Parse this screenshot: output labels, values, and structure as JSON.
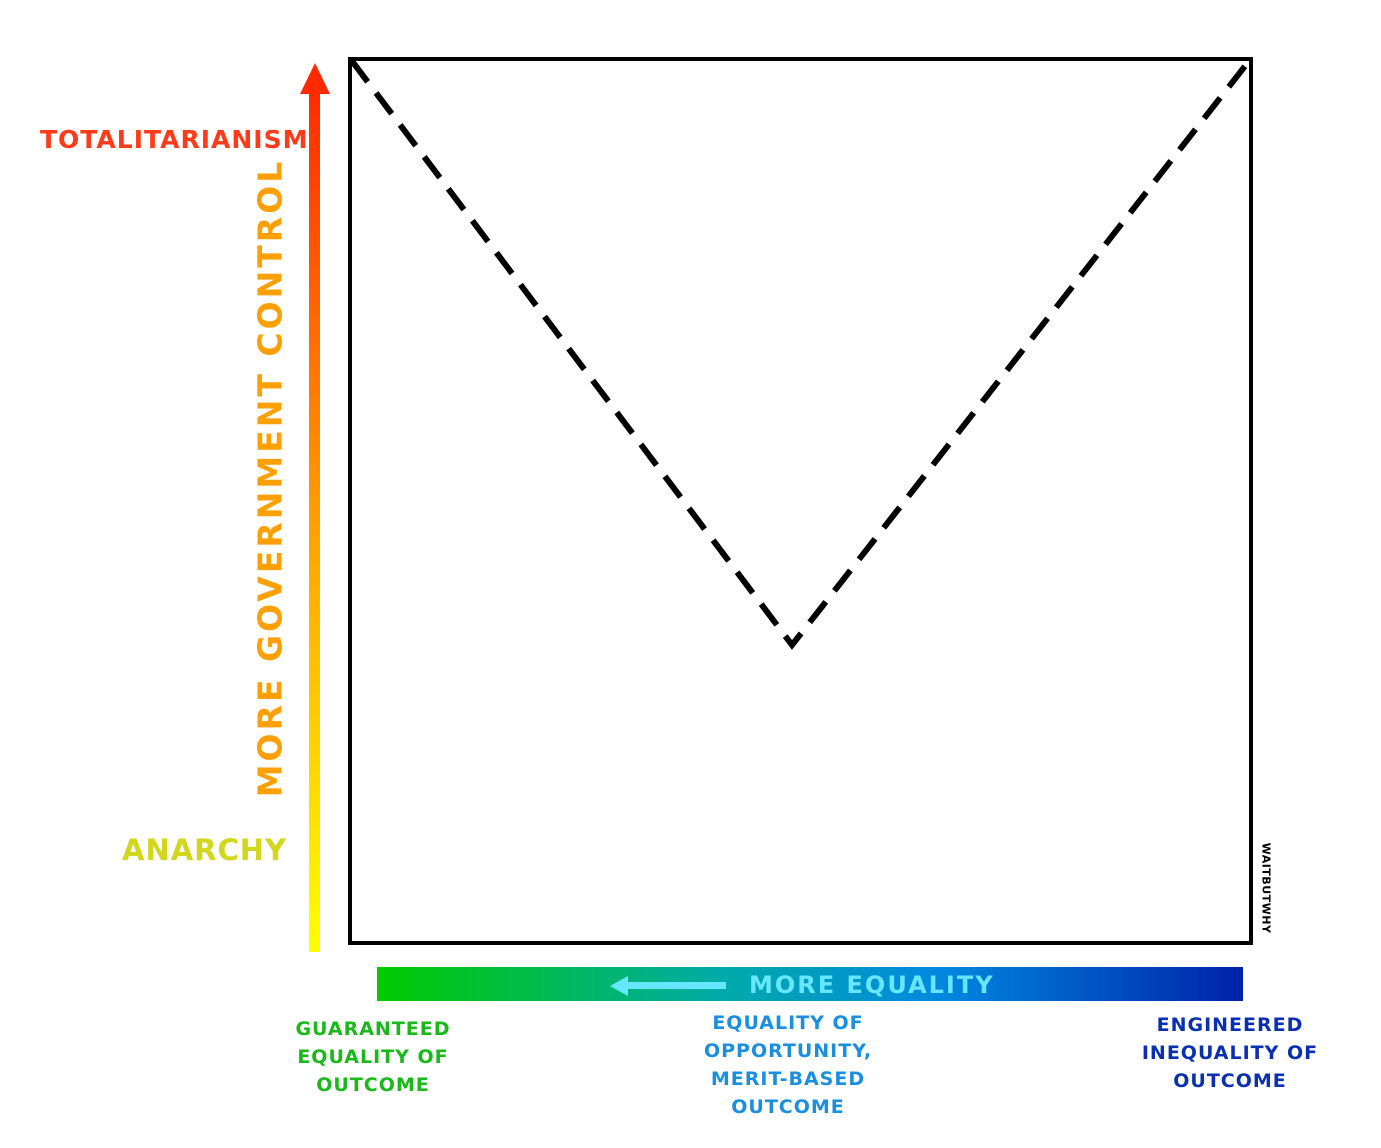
{
  "y_axis": {
    "label": "MORE GOVERNMENT CONTROL",
    "top_label": "TOTALITARIANISM",
    "bottom_label": "ANARCHY"
  },
  "x_axis": {
    "label": "MORE EQUALITY",
    "left_label": "GUARANTEED EQUALITY OF OUTCOME",
    "middle_label": "EQUALITY OF OPPORTUNITY, MERIT-BASED OUTCOME",
    "right_label": "ENGINEERED INEQUALITY OF OUTCOME"
  },
  "watermark": "WAITBUTWHY",
  "colors": {
    "totalitarianism": "#ff3b1a",
    "anarchy": "#d2d61c",
    "y_axis_label": "#ffa000",
    "x_axis_label": "#66e6ff",
    "left_label": "#1ab81a",
    "middle_label": "#1a8fe0",
    "right_label": "#0a2fb0"
  }
}
